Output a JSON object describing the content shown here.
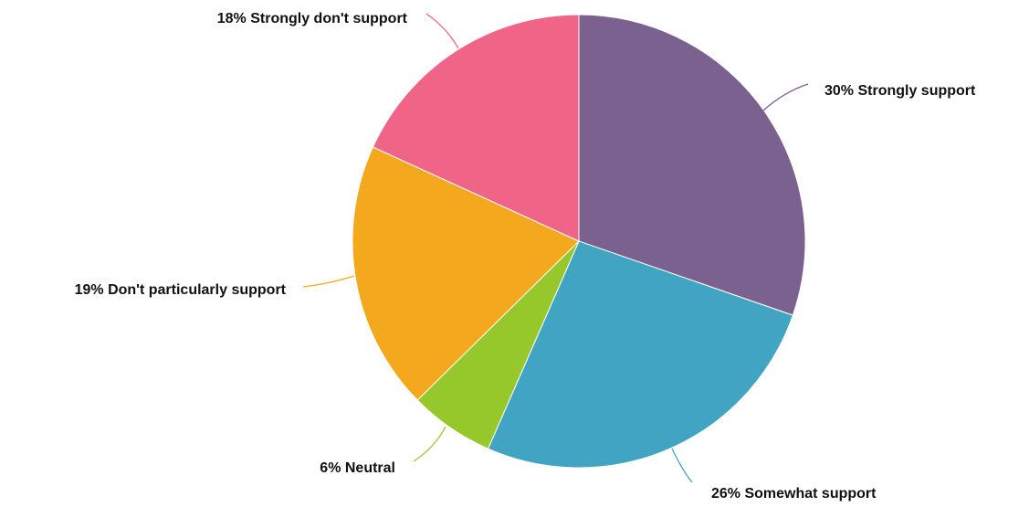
{
  "chart_data": {
    "type": "pie",
    "start_angle_deg": 0,
    "direction": "clockwise",
    "slices": [
      {
        "label": "30% Strongly support",
        "value": 30,
        "color": "#7b618f"
      },
      {
        "label": "26% Somewhat support",
        "value": 26,
        "color": "#41a4c3"
      },
      {
        "label": "6% Neutral",
        "value": 6,
        "color": "#96c82b"
      },
      {
        "label": "19% Don't particularly support",
        "value": 19,
        "color": "#f4a81d"
      },
      {
        "label": "18% Strongly don't support",
        "value": 18,
        "color": "#ef6487"
      }
    ]
  }
}
